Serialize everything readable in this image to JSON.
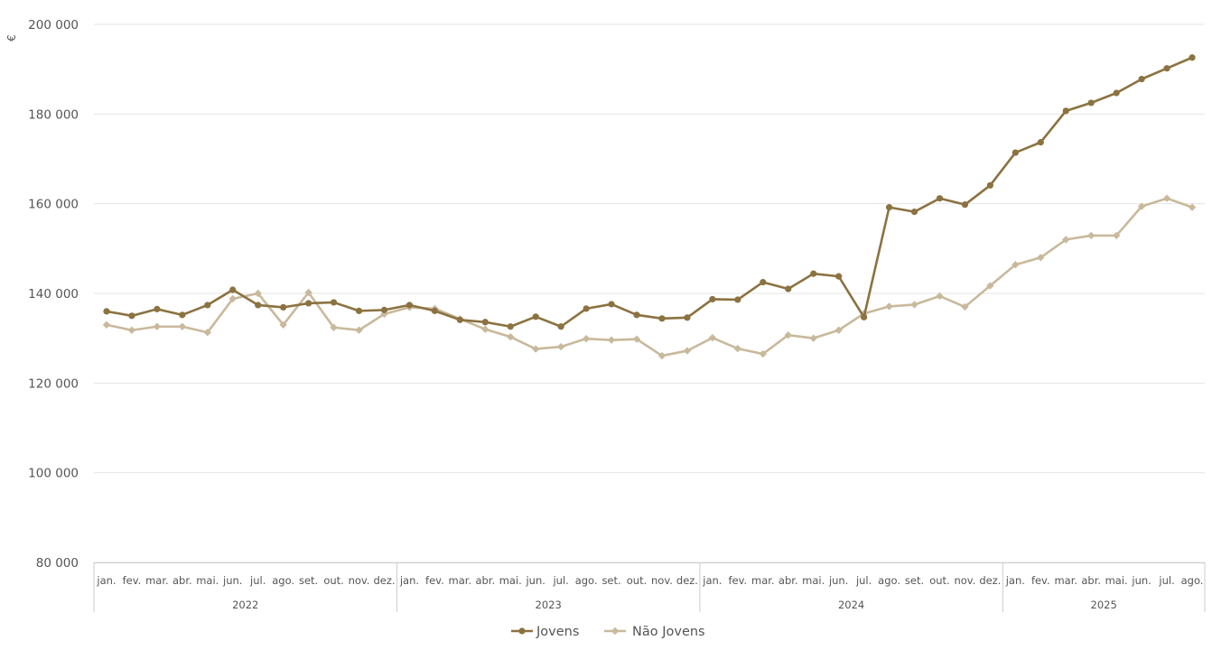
{
  "chart_data": {
    "type": "line",
    "ylabel": "€",
    "ylim": [
      80000,
      200000
    ],
    "yticks": [
      "200 000",
      "180 000",
      "160 000",
      "140 000",
      "120 000",
      "100 000",
      "80 000"
    ],
    "ytick_values": [
      200000,
      180000,
      160000,
      140000,
      120000,
      100000,
      80000
    ],
    "grid": "horizontal",
    "legend_position": "bottom",
    "years": [
      "2022",
      "2023",
      "2024",
      "2025"
    ],
    "months_per_year": [
      12,
      12,
      12,
      8
    ],
    "categories": [
      "jan.",
      "fev.",
      "mar.",
      "abr.",
      "mai.",
      "jun.",
      "jul.",
      "ago.",
      "set.",
      "out.",
      "nov.",
      "dez.",
      "jan.",
      "fev.",
      "mar.",
      "abr.",
      "mai.",
      "jun.",
      "jul.",
      "ago.",
      "set.",
      "out.",
      "nov.",
      "dez.",
      "jan.",
      "fev.",
      "mar.",
      "abr.",
      "mai.",
      "jun.",
      "jul.",
      "ago.",
      "set.",
      "out.",
      "nov.",
      "dez.",
      "jan.",
      "fev.",
      "mar.",
      "abr.",
      "mai.",
      "jun.",
      "jul.",
      "ago."
    ],
    "series": [
      {
        "name": "Jovens",
        "color": "#8b7240",
        "marker": "circle",
        "values": [
          136000,
          135000,
          136500,
          135200,
          137400,
          140800,
          137400,
          136900,
          137800,
          138000,
          136100,
          136300,
          137400,
          136100,
          134100,
          133600,
          132600,
          134800,
          132600,
          136600,
          137600,
          135200,
          134400,
          134600,
          138700,
          138600,
          142500,
          141000,
          144400,
          143800,
          134700,
          159200,
          158200,
          161200,
          159800,
          164100,
          171400,
          173700,
          180700,
          182500,
          184700,
          187800,
          190200,
          192600
        ]
      },
      {
        "name": "Não Jovens",
        "color": "#c9b99c",
        "marker": "diamond",
        "values": [
          133000,
          131800,
          132600,
          132600,
          131300,
          138800,
          140000,
          133000,
          140200,
          132400,
          131800,
          135400,
          136900,
          136600,
          134300,
          132000,
          130300,
          127600,
          128100,
          129900,
          129600,
          129800,
          126100,
          127200,
          130100,
          127700,
          126500,
          130700,
          130000,
          131800,
          135500,
          137100,
          137500,
          139400,
          137000,
          141700,
          146400,
          148000,
          152000,
          152900,
          152900,
          159400,
          161200,
          159200
        ]
      }
    ]
  }
}
